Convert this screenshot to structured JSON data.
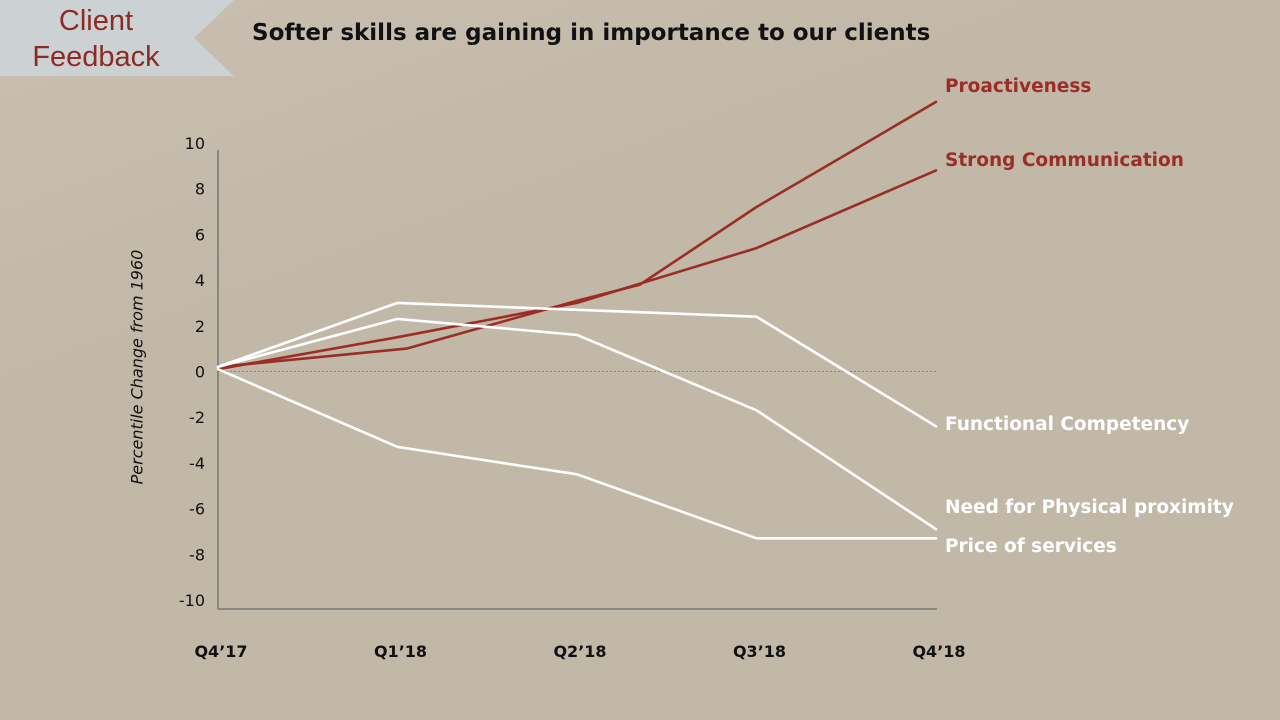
{
  "slide": {
    "tag": "Client\nFeedback",
    "title": "Softer skills are gaining in importance to our clients"
  },
  "colors": {
    "background": "#c2b8a8",
    "accent": "#9b2d26",
    "white_series": "#ffffff",
    "tag_fill": "#ccd1d3",
    "axis": "#888880"
  },
  "chart_data": {
    "type": "line",
    "title": "",
    "xlabel": "",
    "ylabel": "Percentile Change from 1960",
    "categories": [
      "Q4’17",
      "Q1’18",
      "Q2’18",
      "Q3’18",
      "Q4’18"
    ],
    "ylim": [
      -10,
      10
    ],
    "yticks": [
      10,
      8,
      6,
      4,
      2,
      0,
      -2,
      -4,
      -6,
      -8,
      -10
    ],
    "grid": false,
    "zero_line": true,
    "series": [
      {
        "name": "Proactiveness",
        "color": "#9b2d26",
        "points": [
          [
            0,
            0.2
          ],
          [
            1.05,
            1.0
          ],
          [
            2,
            3.1
          ],
          [
            2.35,
            3.8
          ],
          [
            3,
            7.2
          ],
          [
            4,
            11.8
          ]
        ]
      },
      {
        "name": "Strong Communication",
        "color": "#9b2d26",
        "points": [
          [
            0,
            0.1
          ],
          [
            1,
            1.5
          ],
          [
            2,
            3.0
          ],
          [
            3,
            5.4
          ],
          [
            4,
            8.8
          ]
        ]
      },
      {
        "name": "Functional Competency",
        "color": "#ffffff",
        "points": [
          [
            0,
            0.2
          ],
          [
            1,
            3.0
          ],
          [
            2,
            2.7
          ],
          [
            3,
            2.4
          ],
          [
            4,
            -2.4
          ]
        ]
      },
      {
        "name": "Need for Physical proximity",
        "color": "#ffffff",
        "points": [
          [
            0,
            0.2
          ],
          [
            1,
            2.3
          ],
          [
            2,
            1.6
          ],
          [
            3,
            -1.7
          ],
          [
            4,
            -6.9
          ]
        ]
      },
      {
        "name": "Price of services",
        "color": "#ffffff",
        "points": [
          [
            0,
            0.1
          ],
          [
            1,
            -3.3
          ],
          [
            2,
            -4.5
          ],
          [
            3,
            -7.3
          ],
          [
            4,
            -7.3
          ]
        ]
      }
    ]
  }
}
